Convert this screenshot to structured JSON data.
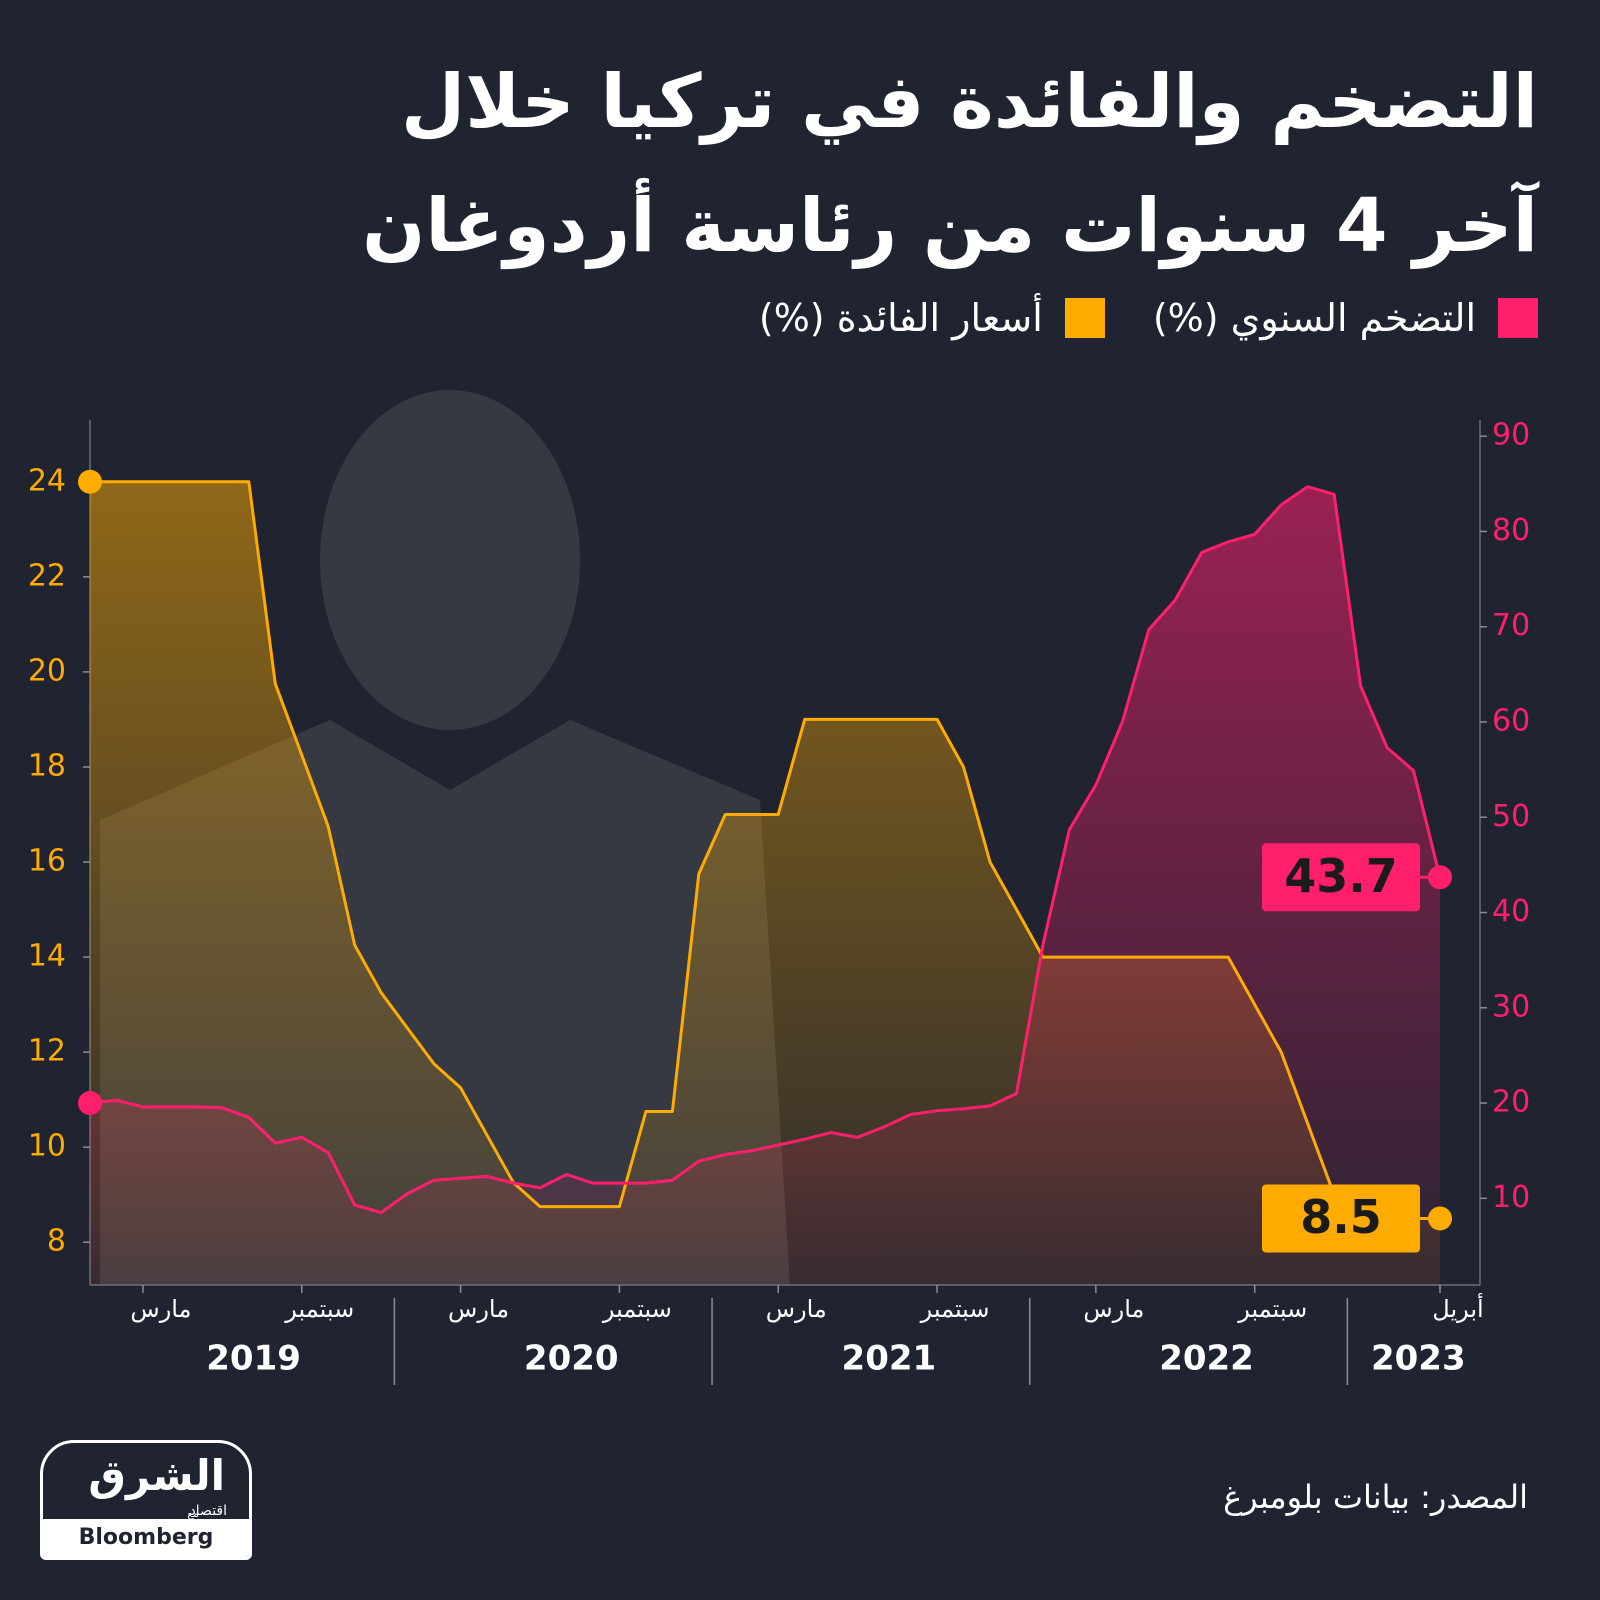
{
  "chart_data": {
    "type": "line",
    "title": [
      "التضخم والفائدة في تركيا خلال",
      "آخر 4 سنوات من رئاسة أردوغان"
    ],
    "source": "المصدر: بيانات بلومبرغ",
    "x": [
      "2019-01",
      "2019-02",
      "2019-03",
      "2019-04",
      "2019-05",
      "2019-06",
      "2019-07",
      "2019-08",
      "2019-09",
      "2019-10",
      "2019-11",
      "2019-12",
      "2020-01",
      "2020-02",
      "2020-03",
      "2020-04",
      "2020-05",
      "2020-06",
      "2020-07",
      "2020-08",
      "2020-09",
      "2020-10",
      "2020-11",
      "2020-12",
      "2021-01",
      "2021-02",
      "2021-03",
      "2021-04",
      "2021-05",
      "2021-06",
      "2021-07",
      "2021-08",
      "2021-09",
      "2021-10",
      "2021-11",
      "2021-12",
      "2022-01",
      "2022-02",
      "2022-03",
      "2022-04",
      "2022-05",
      "2022-06",
      "2022-07",
      "2022-08",
      "2022-09",
      "2022-10",
      "2022-11",
      "2022-12",
      "2023-01",
      "2023-02",
      "2023-03",
      "2023-04"
    ],
    "xticks": [
      {
        "value": "2019-03",
        "label": "مارس"
      },
      {
        "value": "2019-09",
        "label": "سبتمبر"
      },
      {
        "value": "2020-03",
        "label": "مارس"
      },
      {
        "value": "2020-09",
        "label": "سبتمبر"
      },
      {
        "value": "2021-03",
        "label": "مارس"
      },
      {
        "value": "2021-09",
        "label": "سبتمبر"
      },
      {
        "value": "2022-03",
        "label": "مارس"
      },
      {
        "value": "2022-09",
        "label": "سبتمبر"
      },
      {
        "value": "2023-04",
        "label": "أبريل"
      }
    ],
    "year_labels": [
      "2019",
      "2020",
      "2021",
      "2022",
      "2023"
    ],
    "series": [
      {
        "name": "التضخم السنوي (%)",
        "color": "#ff1f6d",
        "axis": "y2",
        "values": [
          20.0,
          20.3,
          19.6,
          19.6,
          19.6,
          19.5,
          18.5,
          15.8,
          16.4,
          14.8,
          9.3,
          8.5,
          10.5,
          11.9,
          12.1,
          12.3,
          11.6,
          11.1,
          12.5,
          11.6,
          11.6,
          11.6,
          11.9,
          13.9,
          14.6,
          15.0,
          15.6,
          16.2,
          16.9,
          16.4,
          17.5,
          18.8,
          19.2,
          19.4,
          19.7,
          21.0,
          36.6,
          48.7,
          53.4,
          60.0,
          69.7,
          72.8,
          77.8,
          78.9,
          79.7,
          82.8,
          84.7,
          83.9,
          63.8,
          57.3,
          54.9,
          43.7
        ]
      },
      {
        "name": "أسعار الفائدة (%)",
        "color": "#ffab00",
        "values": [
          24,
          24,
          24,
          24,
          24,
          24,
          24,
          19.75,
          18.25,
          16.75,
          14.25,
          13.25,
          12.5,
          11.75,
          11.25,
          10.25,
          9.25,
          8.75,
          8.75,
          8.75,
          8.75,
          10.75,
          10.75,
          15.75,
          17,
          17,
          17,
          19,
          19,
          19,
          19,
          19,
          19,
          18,
          16,
          15,
          14,
          14,
          14,
          14,
          14,
          14,
          14,
          14,
          13,
          12,
          10.5,
          9,
          9,
          9,
          8.5,
          8.5
        ]
      }
    ],
    "ylim": [
      7.1,
      25.3
    ],
    "yticks": [
      8,
      10,
      12,
      14,
      16,
      18,
      20,
      22,
      24
    ],
    "y2lim": [
      0.9,
      91.7
    ],
    "y2ticks": [
      10,
      20,
      30,
      40,
      50,
      60,
      70,
      80,
      90
    ],
    "label_last": true
  },
  "logo": {
    "name": "الشرق",
    "sub": "اقتصاد",
    "with": "مع",
    "partner": "Bloomberg"
  }
}
